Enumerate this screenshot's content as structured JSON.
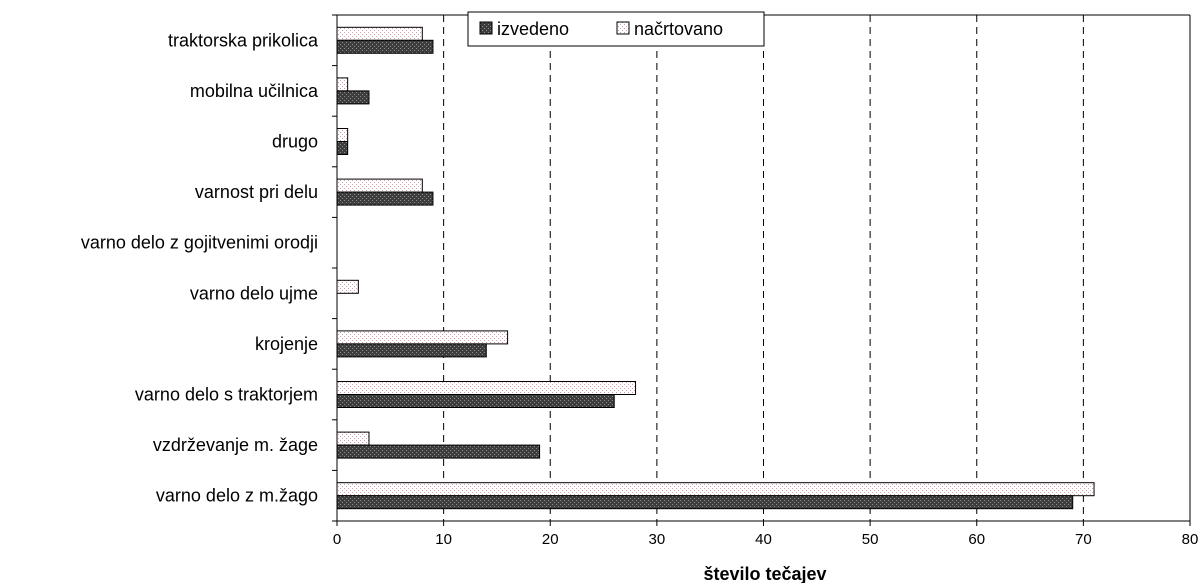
{
  "chart_data": {
    "type": "bar",
    "orientation": "horizontal",
    "title": "",
    "xlabel": "število tečajev",
    "ylabel": "",
    "xlim": [
      0,
      80
    ],
    "xticks": [
      "0",
      "10",
      "20",
      "30",
      "40",
      "50",
      "60",
      "70",
      "80"
    ],
    "grid": "vertical-dashed",
    "legend_position": "top",
    "categories": [
      "traktorska prikolica",
      "mobilna učilnica",
      "drugo",
      "varnost pri delu",
      "varno delo z gojitvenimi orodji",
      "varno delo ujme",
      "krojenje",
      "varno delo s traktorjem",
      "vzdrževanje m. žage",
      "varno delo z m.žago"
    ],
    "series": [
      {
        "name": "izvedeno",
        "values": [
          9,
          3,
          1,
          9,
          0,
          0,
          14,
          26,
          19,
          69
        ],
        "color": "#3a3a3a"
      },
      {
        "name": "načrtovano",
        "values": [
          8,
          1,
          1,
          8,
          0,
          2,
          16,
          28,
          3,
          71
        ],
        "color": "#f4d9de"
      }
    ]
  }
}
